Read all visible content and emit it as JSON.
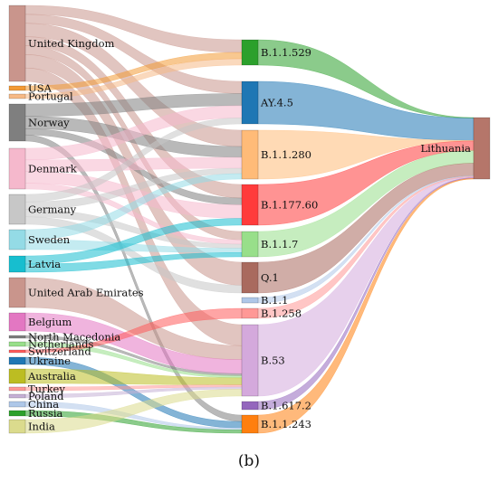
{
  "caption": "(b)",
  "chart_data": {
    "type": "sankey",
    "sources": [
      {
        "name": "United Kingdom",
        "color": "#c9958c"
      },
      {
        "name": "USA",
        "color": "#f39a35"
      },
      {
        "name": "Portugal",
        "color": "#f6b986"
      },
      {
        "name": "Norway",
        "color": "#7f7f7f"
      },
      {
        "name": "Denmark",
        "color": "#f5b8cc"
      },
      {
        "name": "Germany",
        "color": "#c7c7c7"
      },
      {
        "name": "Sweden",
        "color": "#94dbe6"
      },
      {
        "name": "Latvia",
        "color": "#17becf"
      },
      {
        "name": "United Arab Emirates",
        "color": "#c9958c"
      },
      {
        "name": "Belgium",
        "color": "#e377c2"
      },
      {
        "name": "North Macedonia",
        "color": "#7f7f7f"
      },
      {
        "name": "Netherlands",
        "color": "#98df8a"
      },
      {
        "name": "Switzerland",
        "color": "#ff5b5b"
      },
      {
        "name": "Ukraine",
        "color": "#1f77b4"
      },
      {
        "name": "Australia",
        "color": "#bcbd22"
      },
      {
        "name": "Turkey",
        "color": "#ff9896"
      },
      {
        "name": "Poland",
        "color": "#c5b0d5"
      },
      {
        "name": "China",
        "color": "#aec7e8"
      },
      {
        "name": "Russia",
        "color": "#2ca02c"
      },
      {
        "name": "India",
        "color": "#dbdb8d"
      }
    ],
    "lineages": [
      {
        "name": "B.1.1.529",
        "color": "#2ca02c"
      },
      {
        "name": "AY.4.5",
        "color": "#1f77b4"
      },
      {
        "name": "B.1.1.280",
        "color": "#ffbb78"
      },
      {
        "name": "B.1.177.60",
        "color": "#ff3b3b"
      },
      {
        "name": "B.1.1.7",
        "color": "#98df8a"
      },
      {
        "name": "Q.1",
        "color": "#a96a5e"
      },
      {
        "name": "B.1.1",
        "color": "#aec7e8"
      },
      {
        "name": "B.1.258",
        "color": "#ff9896"
      },
      {
        "name": "B.53",
        "color": "#d4a9dc"
      },
      {
        "name": "B.1.617.2",
        "color": "#9467bd"
      },
      {
        "name": "B.1.1.243",
        "color": "#ff7f0e"
      }
    ],
    "target": {
      "name": "Lithuania",
      "color": "#b5766a"
    },
    "links": [
      {
        "source": "United Kingdom",
        "target": "B.1.1.529",
        "value": 2
      },
      {
        "source": "United Kingdom",
        "target": "AY.4.5",
        "value": 2
      },
      {
        "source": "United Kingdom",
        "target": "B.1.1.280",
        "value": 3
      },
      {
        "source": "United Kingdom",
        "target": "B.1.177.60",
        "value": 2
      },
      {
        "source": "United Kingdom",
        "target": "B.1.1.7",
        "value": 2
      },
      {
        "source": "United Kingdom",
        "target": "Q.1",
        "value": 3
      },
      {
        "source": "United Kingdom",
        "target": "B.53",
        "value": 3
      },
      {
        "source": "USA",
        "target": "B.1.1.529",
        "value": 1
      },
      {
        "source": "Portugal",
        "target": "B.1.1.529",
        "value": 1
      },
      {
        "source": "Norway",
        "target": "AY.4.5",
        "value": 2
      },
      {
        "source": "Norway",
        "target": "B.1.1.280",
        "value": 2
      },
      {
        "source": "Norway",
        "target": "B.1.177.60",
        "value": 1
      },
      {
        "source": "Norway",
        "target": "B.1.1.243",
        "value": 1
      },
      {
        "source": "Denmark",
        "target": "AY.4.5",
        "value": 2
      },
      {
        "source": "Denmark",
        "target": "B.1.1.280",
        "value": 2
      },
      {
        "source": "Denmark",
        "target": "B.1.177.60",
        "value": 2
      },
      {
        "source": "Denmark",
        "target": "B.1.1.7",
        "value": 1
      },
      {
        "source": "Germany",
        "target": "AY.4.5",
        "value": 1
      },
      {
        "source": "Germany",
        "target": "B.1.1.280",
        "value": 1
      },
      {
        "source": "Germany",
        "target": "B.1.1.7",
        "value": 1
      },
      {
        "source": "Germany",
        "target": "Q.1",
        "value": 1
      },
      {
        "source": "Sweden",
        "target": "B.1.1.280",
        "value": 1
      },
      {
        "source": "Sweden",
        "target": "B.1.1.7",
        "value": 1
      },
      {
        "source": "Latvia",
        "target": "B.1.177.60",
        "value": 1
      },
      {
        "source": "Latvia",
        "target": "B.1.1.7",
        "value": 1
      },
      {
        "source": "United Arab Emirates",
        "target": "B.53",
        "value": 2
      },
      {
        "source": "Belgium",
        "target": "B.53",
        "value": 2
      },
      {
        "source": "North Macedonia",
        "target": "B.53",
        "value": 0.3
      },
      {
        "source": "Netherlands",
        "target": "B.53",
        "value": 0.3
      },
      {
        "source": "Switzerland",
        "target": "B.1.258",
        "value": 0.3
      },
      {
        "source": "Ukraine",
        "target": "B.1.1.243",
        "value": 1
      },
      {
        "source": "Australia",
        "target": "B.53",
        "value": 1
      },
      {
        "source": "Turkey",
        "target": "B.53",
        "value": 0.3
      },
      {
        "source": "Poland",
        "target": "B.53",
        "value": 0.3
      },
      {
        "source": "China",
        "target": "B.1.1.243",
        "value": 0.3
      },
      {
        "source": "Russia",
        "target": "B.1.1.243",
        "value": 0.5
      },
      {
        "source": "India",
        "target": "B.53",
        "value": 1
      },
      {
        "source": "B.1.1.529",
        "target": "Lithuania",
        "value": 0.2
      },
      {
        "source": "AY.4.5",
        "target": "Lithuania",
        "value": 7
      },
      {
        "source": "B.1.1.280",
        "target": "Lithuania",
        "value": 0.2
      },
      {
        "source": "B.1.177.60",
        "target": "Lithuania",
        "value": 3
      },
      {
        "source": "B.1.1.7",
        "target": "Lithuania",
        "value": 4
      },
      {
        "source": "Q.1",
        "target": "Lithuania",
        "value": 4
      },
      {
        "source": "B.1.1",
        "target": "Lithuania",
        "value": 0.2
      },
      {
        "source": "B.1.258",
        "target": "Lithuania",
        "value": 0.2
      },
      {
        "source": "B.53",
        "target": "Lithuania",
        "value": 0.2
      },
      {
        "source": "B.1.617.2",
        "target": "Lithuania",
        "value": 0.2
      },
      {
        "source": "B.1.1.243",
        "target": "Lithuania",
        "value": 0.2
      }
    ]
  }
}
